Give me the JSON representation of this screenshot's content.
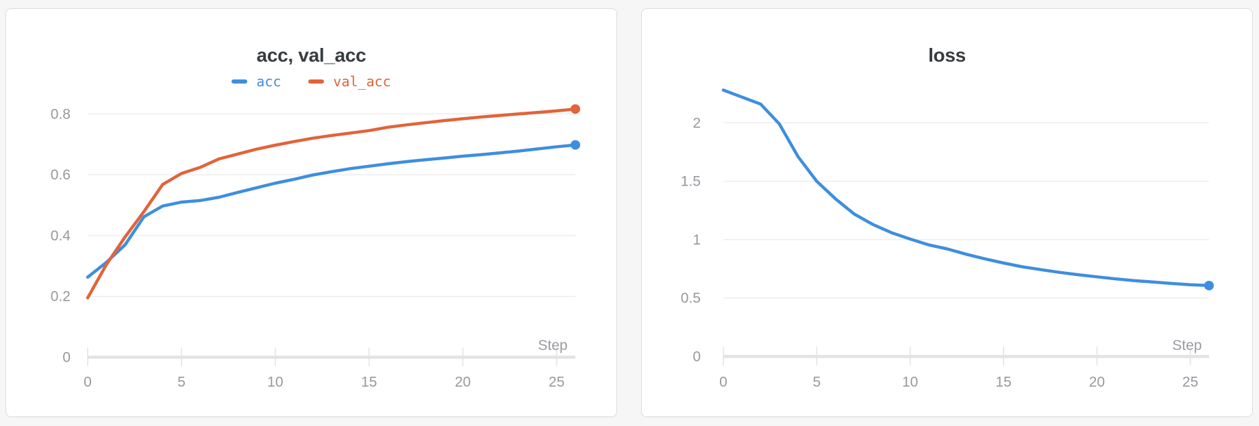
{
  "page": {
    "background": "#f6f6f7",
    "card_background": "#ffffff",
    "card_border": "#dcdcdd"
  },
  "style": {
    "title_color": "#373c40",
    "tick_label_color": "#97979f",
    "axis_label_color": "#9a9aa2",
    "gridline_color": "#ededef",
    "axis_line_color": "#e3e3e5",
    "tick_mark_color": "#e9e9eb",
    "accent_blue": "#3e8ede",
    "accent_orange": "#e1643a"
  },
  "panels": [
    {
      "title": "acc, val_acc",
      "has_legend": true
    },
    {
      "title": "loss",
      "has_legend": false
    }
  ],
  "chart_data": [
    {
      "type": "line",
      "title": "acc, val_acc",
      "xlabel": "Step",
      "ylabel": "",
      "grid": true,
      "legend_position": "top",
      "xlim": [
        0,
        26
      ],
      "ylim": [
        0,
        0.88
      ],
      "x_ticks": [
        0,
        5,
        10,
        15,
        20,
        25
      ],
      "x_tick_labels": [
        "0",
        "5",
        "10",
        "15",
        "20",
        "25"
      ],
      "y_ticks": [
        0,
        0.2,
        0.4,
        0.6,
        0.8
      ],
      "y_tick_labels": [
        "0",
        "0.2",
        "0.4",
        "0.6",
        "0.8"
      ],
      "x": [
        0,
        1,
        2,
        3,
        4,
        5,
        6,
        7,
        8,
        9,
        10,
        11,
        12,
        13,
        14,
        15,
        16,
        17,
        18,
        19,
        20,
        21,
        22,
        23,
        24,
        25,
        26
      ],
      "series": [
        {
          "name": "acc",
          "color": "#3e8ede",
          "end_marker": true,
          "values": [
            0.263,
            0.312,
            0.37,
            0.462,
            0.497,
            0.51,
            0.515,
            0.526,
            0.542,
            0.557,
            0.572,
            0.585,
            0.599,
            0.61,
            0.62,
            0.628,
            0.636,
            0.643,
            0.649,
            0.655,
            0.661,
            0.666,
            0.672,
            0.678,
            0.685,
            0.692,
            0.698
          ]
        },
        {
          "name": "val_acc",
          "color": "#e1643a",
          "end_marker": true,
          "values": [
            0.195,
            0.305,
            0.396,
            0.479,
            0.568,
            0.604,
            0.624,
            0.652,
            0.668,
            0.684,
            0.697,
            0.709,
            0.72,
            0.729,
            0.737,
            0.745,
            0.756,
            0.764,
            0.771,
            0.778,
            0.784,
            0.79,
            0.795,
            0.8,
            0.805,
            0.81,
            0.816
          ]
        }
      ]
    },
    {
      "type": "line",
      "title": "loss",
      "xlabel": "Step",
      "ylabel": "",
      "grid": true,
      "legend_position": "none",
      "xlim": [
        0,
        26
      ],
      "ylim": [
        0,
        2.4
      ],
      "x_ticks": [
        0,
        5,
        10,
        15,
        20,
        25
      ],
      "x_tick_labels": [
        "0",
        "5",
        "10",
        "15",
        "20",
        "25"
      ],
      "y_ticks": [
        0,
        0.5,
        1,
        1.5,
        2
      ],
      "y_tick_labels": [
        "0",
        "0.5",
        "1",
        "1.5",
        "2"
      ],
      "x": [
        0,
        1,
        2,
        3,
        4,
        5,
        6,
        7,
        8,
        9,
        10,
        11,
        12,
        13,
        14,
        15,
        16,
        17,
        18,
        19,
        20,
        21,
        22,
        23,
        24,
        25,
        26
      ],
      "series": [
        {
          "name": "loss",
          "color": "#3e8ede",
          "end_marker": true,
          "values": [
            2.28,
            2.22,
            2.16,
            1.99,
            1.71,
            1.5,
            1.35,
            1.22,
            1.13,
            1.06,
            1.005,
            0.955,
            0.92,
            0.875,
            0.836,
            0.8,
            0.768,
            0.743,
            0.72,
            0.7,
            0.682,
            0.664,
            0.649,
            0.637,
            0.625,
            0.614,
            0.607
          ]
        }
      ]
    }
  ]
}
